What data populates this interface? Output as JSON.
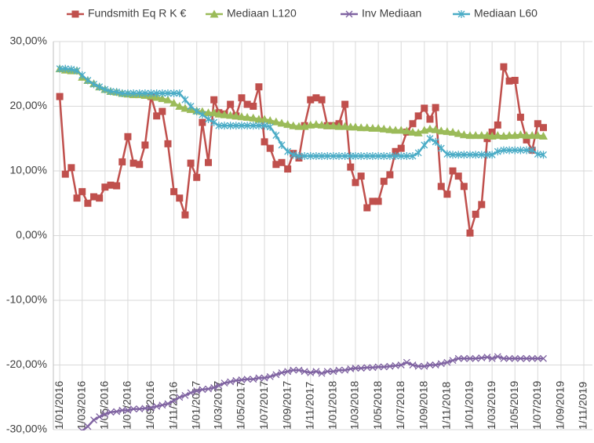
{
  "chart_data": {
    "type": "line",
    "x": [
      "2016-01-01",
      "2016-01-16",
      "2016-02-01",
      "2016-02-16",
      "2016-03-01",
      "2016-03-16",
      "2016-04-01",
      "2016-04-16",
      "2016-05-01",
      "2016-05-16",
      "2016-06-01",
      "2016-06-16",
      "2016-07-01",
      "2016-07-16",
      "2016-08-01",
      "2016-08-16",
      "2016-09-01",
      "2016-09-16",
      "2016-10-01",
      "2016-10-16",
      "2016-11-01",
      "2016-11-16",
      "2016-12-01",
      "2016-12-16",
      "2017-01-01",
      "2017-01-16",
      "2017-02-01",
      "2017-02-16",
      "2017-03-01",
      "2017-03-16",
      "2017-04-01",
      "2017-04-16",
      "2017-05-01",
      "2017-05-16",
      "2017-06-01",
      "2017-06-16",
      "2017-07-01",
      "2017-07-16",
      "2017-08-01",
      "2017-08-16",
      "2017-09-01",
      "2017-09-16",
      "2017-10-01",
      "2017-10-16",
      "2017-11-01",
      "2017-11-16",
      "2017-12-01",
      "2017-12-16",
      "2018-01-01",
      "2018-01-16",
      "2018-02-01",
      "2018-02-16",
      "2018-03-01",
      "2018-03-16",
      "2018-04-01",
      "2018-04-16",
      "2018-05-01",
      "2018-05-16",
      "2018-06-01",
      "2018-06-16",
      "2018-07-01",
      "2018-07-16",
      "2018-08-01",
      "2018-08-16",
      "2018-09-01",
      "2018-09-16",
      "2018-10-01",
      "2018-10-16",
      "2018-11-01",
      "2018-11-16",
      "2018-12-01",
      "2018-12-16",
      "2019-01-01",
      "2019-01-16",
      "2019-02-01",
      "2019-02-16",
      "2019-03-01",
      "2019-03-16",
      "2019-04-01",
      "2019-04-16",
      "2019-05-01",
      "2019-05-16",
      "2019-06-01",
      "2019-06-16",
      "2019-07-01",
      "2019-07-16"
    ],
    "series": [
      {
        "name": "Fundsmith Eq R K €",
        "color": "#c0504d",
        "marker": "square",
        "values": [
          21.5,
          9.5,
          10.5,
          5.8,
          6.8,
          5.0,
          6.0,
          5.8,
          7.5,
          7.8,
          7.7,
          11.4,
          15.3,
          11.2,
          11.0,
          14.0,
          21.5,
          18.5,
          19.2,
          14.2,
          6.8,
          5.8,
          3.2,
          11.2,
          9.0,
          17.5,
          11.3,
          21.0,
          19.0,
          18.8,
          20.3,
          18.5,
          21.3,
          20.3,
          20.0,
          23.0,
          14.5,
          13.5,
          11.0,
          11.3,
          10.3,
          12.7,
          12.0,
          17.0,
          21.0,
          21.3,
          21.0,
          17.0,
          17.0,
          17.3,
          20.3,
          10.6,
          8.2,
          9.2,
          4.3,
          5.3,
          5.3,
          8.4,
          9.4,
          13.0,
          13.5,
          16.0,
          17.3,
          18.5,
          19.7,
          18.0,
          19.8,
          7.6,
          6.4,
          10.0,
          9.2,
          7.6,
          0.4,
          3.3,
          4.8,
          15.0,
          16.0,
          17.1,
          26.1,
          23.9,
          24.0,
          18.3,
          14.8,
          13.2,
          17.3,
          16.7
        ]
      },
      {
        "name": "Mediaan L120",
        "color": "#9bbb59",
        "marker": "triangle",
        "values": [
          25.8,
          25.6,
          25.5,
          25.5,
          24.5,
          24.0,
          23.5,
          23.0,
          22.6,
          22.3,
          22.2,
          22.0,
          21.9,
          21.8,
          21.8,
          21.7,
          21.6,
          21.4,
          21.2,
          21.0,
          20.5,
          20.0,
          19.7,
          19.5,
          19.3,
          19.2,
          19.0,
          19.0,
          18.8,
          18.7,
          18.6,
          18.5,
          18.4,
          18.3,
          18.2,
          18.0,
          18.0,
          17.8,
          17.6,
          17.4,
          17.2,
          17.0,
          16.9,
          16.9,
          17.1,
          17.2,
          17.1,
          17.0,
          17.0,
          16.9,
          16.9,
          16.8,
          16.8,
          16.7,
          16.7,
          16.6,
          16.6,
          16.5,
          16.4,
          16.3,
          16.3,
          16.2,
          16.0,
          15.9,
          16.3,
          16.5,
          16.4,
          16.2,
          16.1,
          16.0,
          15.8,
          15.6,
          15.5,
          15.5,
          15.5,
          15.5,
          15.4,
          15.5,
          15.4,
          15.5,
          15.5,
          15.6,
          15.5,
          15.5,
          15.5,
          15.4
        ]
      },
      {
        "name": "Inv Mediaan",
        "color": "#8064a2",
        "marker": "x",
        "values": [
          null,
          null,
          null,
          null,
          -30.2,
          -29.5,
          -28.5,
          -28.0,
          -27.6,
          -27.3,
          -27.2,
          -27.0,
          -27.0,
          -26.8,
          -26.8,
          -26.7,
          -26.6,
          -26.4,
          -26.2,
          -26.0,
          -25.5,
          -25.0,
          -24.7,
          -24.3,
          -24.0,
          -23.8,
          -23.7,
          -23.5,
          -23.2,
          -22.8,
          -22.6,
          -22.4,
          -22.3,
          -22.2,
          -22.2,
          -22.0,
          -22.0,
          -21.8,
          -21.5,
          -21.2,
          -21.0,
          -20.8,
          -20.8,
          -21.0,
          -21.2,
          -21.0,
          -21.3,
          -21.0,
          -21.0,
          -20.8,
          -20.8,
          -20.6,
          -20.5,
          -20.5,
          -20.4,
          -20.4,
          -20.3,
          -20.3,
          -20.2,
          -20.1,
          -20.0,
          -19.6,
          -20.0,
          -20.2,
          -20.2,
          -20.0,
          -20.0,
          -19.8,
          -19.6,
          -19.3,
          -19.0,
          -19.0,
          -19.0,
          -19.0,
          -18.9,
          -18.8,
          -19.0,
          -18.7,
          -19.0,
          -19.0,
          -19.0,
          -19.0,
          -19.0,
          -19.0,
          -19.0,
          -19.0
        ]
      },
      {
        "name": "Mediaan L60",
        "color": "#4bacc6",
        "marker": "star",
        "values": [
          25.8,
          25.8,
          25.7,
          25.5,
          24.8,
          24.0,
          23.4,
          23.0,
          22.6,
          22.3,
          22.2,
          22.0,
          22.0,
          22.0,
          22.0,
          22.0,
          22.0,
          22.0,
          22.0,
          22.0,
          22.0,
          22.0,
          21.0,
          20.0,
          19.2,
          18.7,
          18.0,
          17.5,
          17.0,
          17.0,
          17.0,
          17.0,
          17.0,
          17.0,
          17.0,
          17.0,
          17.0,
          16.8,
          15.5,
          14.0,
          13.0,
          12.5,
          12.3,
          12.3,
          12.3,
          12.3,
          12.3,
          12.3,
          12.3,
          12.3,
          12.3,
          12.3,
          12.3,
          12.3,
          12.3,
          12.3,
          12.3,
          12.3,
          12.3,
          12.3,
          12.3,
          12.3,
          12.3,
          12.8,
          14.0,
          15.0,
          14.5,
          13.5,
          12.6,
          12.5,
          12.5,
          12.5,
          12.5,
          12.5,
          12.5,
          12.5,
          12.5,
          13.0,
          13.2,
          13.2,
          13.2,
          13.2,
          13.2,
          13.2,
          12.6,
          12.5
        ]
      }
    ],
    "xlim": [
      "2015-12-15",
      "2019-11-24"
    ],
    "xticks": [
      {
        "value": "2016-01-01",
        "label": "1/01/2016"
      },
      {
        "value": "2016-03-01",
        "label": "1/03/2016"
      },
      {
        "value": "2016-05-01",
        "label": "1/05/2016"
      },
      {
        "value": "2016-07-01",
        "label": "1/07/2016"
      },
      {
        "value": "2016-09-01",
        "label": "1/09/2016"
      },
      {
        "value": "2016-11-01",
        "label": "1/11/2016"
      },
      {
        "value": "2017-01-01",
        "label": "1/01/2017"
      },
      {
        "value": "2017-03-01",
        "label": "1/03/2017"
      },
      {
        "value": "2017-05-01",
        "label": "1/05/2017"
      },
      {
        "value": "2017-07-01",
        "label": "1/07/2017"
      },
      {
        "value": "2017-09-01",
        "label": "1/09/2017"
      },
      {
        "value": "2017-11-01",
        "label": "1/11/2017"
      },
      {
        "value": "2018-01-01",
        "label": "1/01/2018"
      },
      {
        "value": "2018-03-01",
        "label": "1/03/2018"
      },
      {
        "value": "2018-05-01",
        "label": "1/05/2018"
      },
      {
        "value": "2018-07-01",
        "label": "1/07/2018"
      },
      {
        "value": "2018-09-01",
        "label": "1/09/2018"
      },
      {
        "value": "2018-11-01",
        "label": "1/11/2018"
      },
      {
        "value": "2019-01-01",
        "label": "1/01/2019"
      },
      {
        "value": "2019-03-01",
        "label": "1/03/2019"
      },
      {
        "value": "2019-05-01",
        "label": "1/05/2019"
      },
      {
        "value": "2019-07-01",
        "label": "1/07/2019"
      },
      {
        "value": "2019-09-01",
        "label": "1/09/2019"
      },
      {
        "value": "2019-11-01",
        "label": "1/11/2019"
      }
    ],
    "ylim": [
      -30,
      30
    ],
    "yticks": [
      {
        "value": -30,
        "label": "-30,00%"
      },
      {
        "value": -20,
        "label": "-20,00%"
      },
      {
        "value": -10,
        "label": "-10,00%"
      },
      {
        "value": 0,
        "label": "0,00%"
      },
      {
        "value": 10,
        "label": "10,00%"
      },
      {
        "value": 20,
        "label": "20,00%"
      },
      {
        "value": 30,
        "label": "30,00%"
      }
    ],
    "grid": true,
    "legend": "top"
  }
}
